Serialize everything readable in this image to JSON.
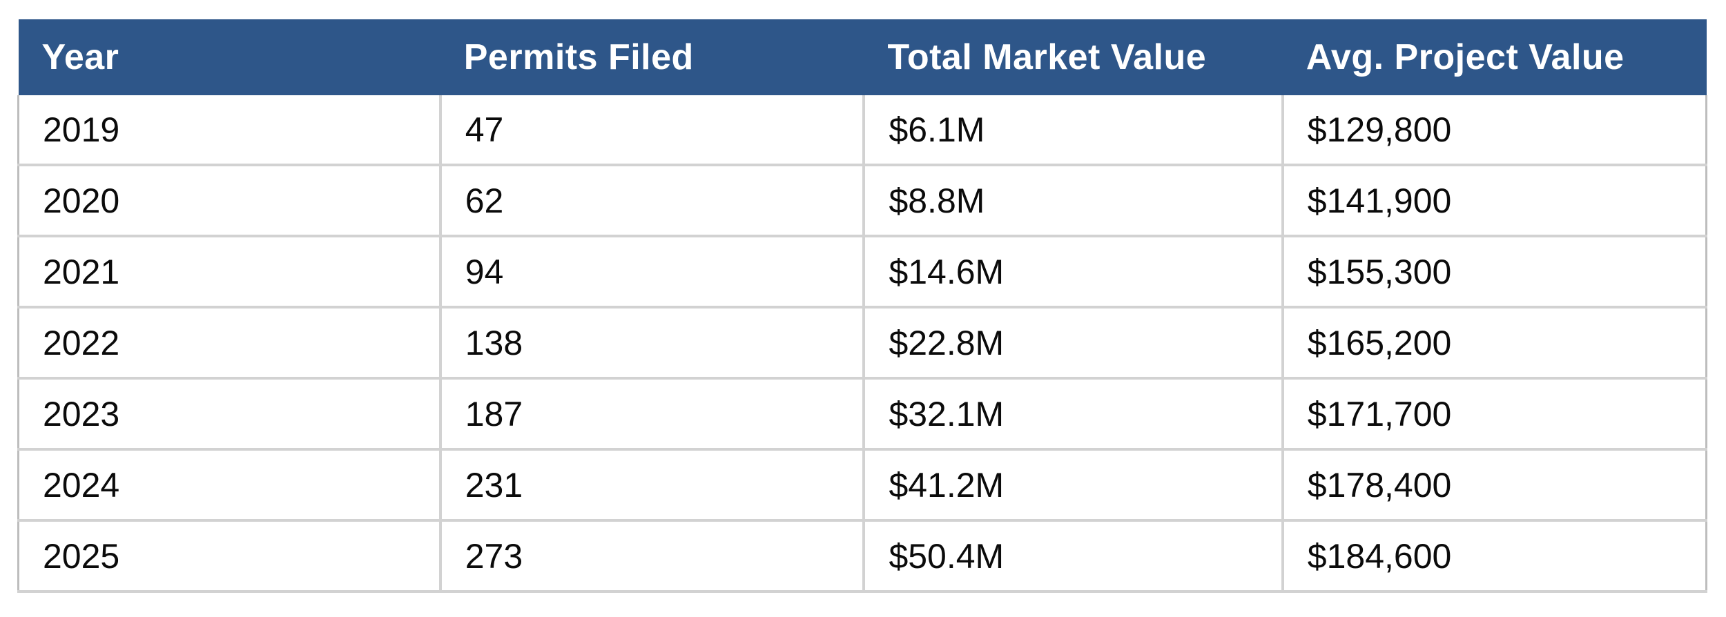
{
  "chart_data": {
    "type": "table",
    "columns": [
      "Year",
      "Permits Filed",
      "Total Market Value",
      "Avg. Project Value"
    ],
    "rows": [
      [
        "2019",
        "47",
        "$6.1M",
        "$129,800"
      ],
      [
        "2020",
        "62",
        "$8.8M",
        "$141,900"
      ],
      [
        "2021",
        "94",
        "$14.6M",
        "$155,300"
      ],
      [
        "2022",
        "138",
        "$22.8M",
        "$165,200"
      ],
      [
        "2023",
        "187",
        "$32.1M",
        "$171,700"
      ],
      [
        "2024",
        "231",
        "$41.2M",
        "$178,400"
      ],
      [
        "2025",
        "273",
        "$50.4M",
        "$184,600"
      ]
    ]
  },
  "colors": {
    "header_bg": "#2e5689",
    "header_text": "#ffffff",
    "body_text": "#0b0b0b",
    "grid_line": "#d2d2d2",
    "outer_border": "#bdbdbd",
    "background": "#ffffff"
  }
}
